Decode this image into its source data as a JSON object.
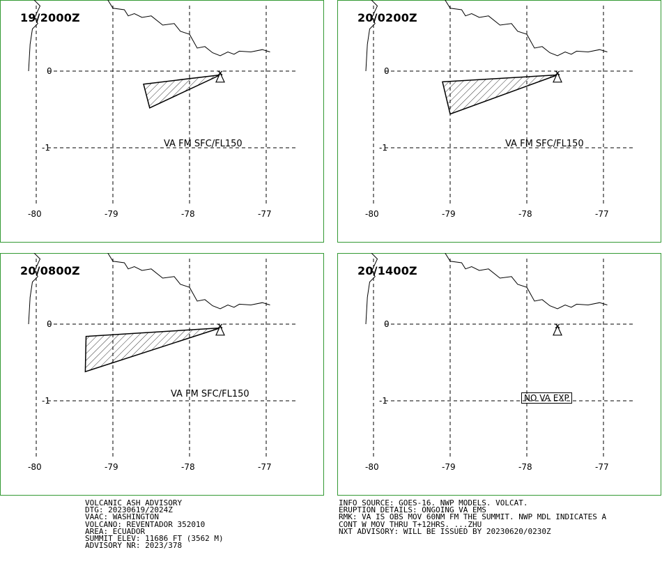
{
  "colors": {
    "frame": "#339933",
    "ash_fill": "#d8d8d8",
    "ink": "#000000"
  },
  "axes": {
    "x_ticks": [
      "-80",
      "-79",
      "-78",
      "-77"
    ],
    "y_ticks": [
      "0",
      "-1"
    ]
  },
  "panels": [
    {
      "title": "19/2000Z",
      "label": "VA FM SFC/FL150",
      "has_ash": true
    },
    {
      "title": "20/0200Z",
      "label": "VA FM SFC/FL150",
      "has_ash": true
    },
    {
      "title": "20/0800Z",
      "label": "VA FM SFC/FL150",
      "has_ash": true
    },
    {
      "title": "20/1400Z",
      "label": "NO VA EXP",
      "has_ash": false
    }
  ],
  "advisory_left": [
    "VOLCANIC ASH ADVISORY",
    "DTG: 20230619/2024Z",
    "VAAC: WASHINGTON",
    "VOLCANO: REVENTADOR 352010",
    "AREA: ECUADOR",
    "SUMMIT ELEV: 11686 FT (3562 M)",
    "ADVISORY NR: 2023/378"
  ],
  "advisory_right": [
    "INFO SOURCE: GOES-16. NWP MODELS. VOLCAT.",
    "ERUPTION DETAILS: ONGOING VA EMS",
    "RMK: VA IS OBS MOV 60NM FM THE SUMMIT. NWP MDL INDICATES A",
    "CONT W MOV THRU T+12HRS. ...ZHU",
    "NXT ADVISORY: WILL BE ISSUED BY 20230620/0230Z"
  ]
}
